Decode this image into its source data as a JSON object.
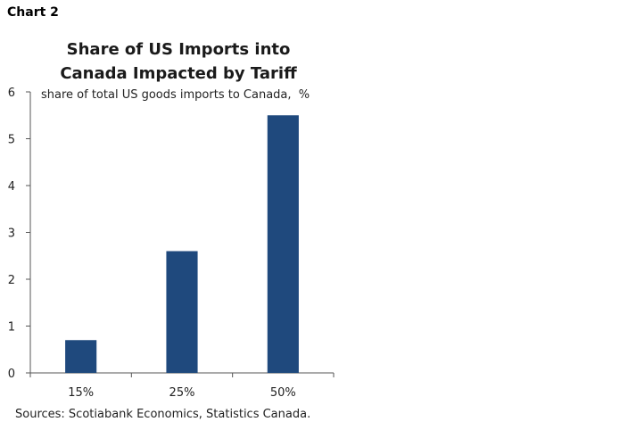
{
  "header": {
    "chart_number": "Chart 2"
  },
  "footer": {
    "sources": "Sources: Scotiabank Economics, Statistics Canada."
  },
  "chart_data": {
    "type": "bar",
    "title_lines": [
      "Share of US Imports into",
      "Canada Impacted by Tariff"
    ],
    "ylabel": "share of total US goods imports to Canada,  %",
    "xlabel": "",
    "categories": [
      "15%",
      "25%",
      "50%"
    ],
    "values": [
      0.7,
      2.6,
      5.5
    ],
    "ylim": [
      0,
      6
    ],
    "yticks": [
      0,
      1,
      2,
      3,
      4,
      5,
      6
    ],
    "bar_color": "#1f497d",
    "grid": false,
    "legend": "none"
  }
}
